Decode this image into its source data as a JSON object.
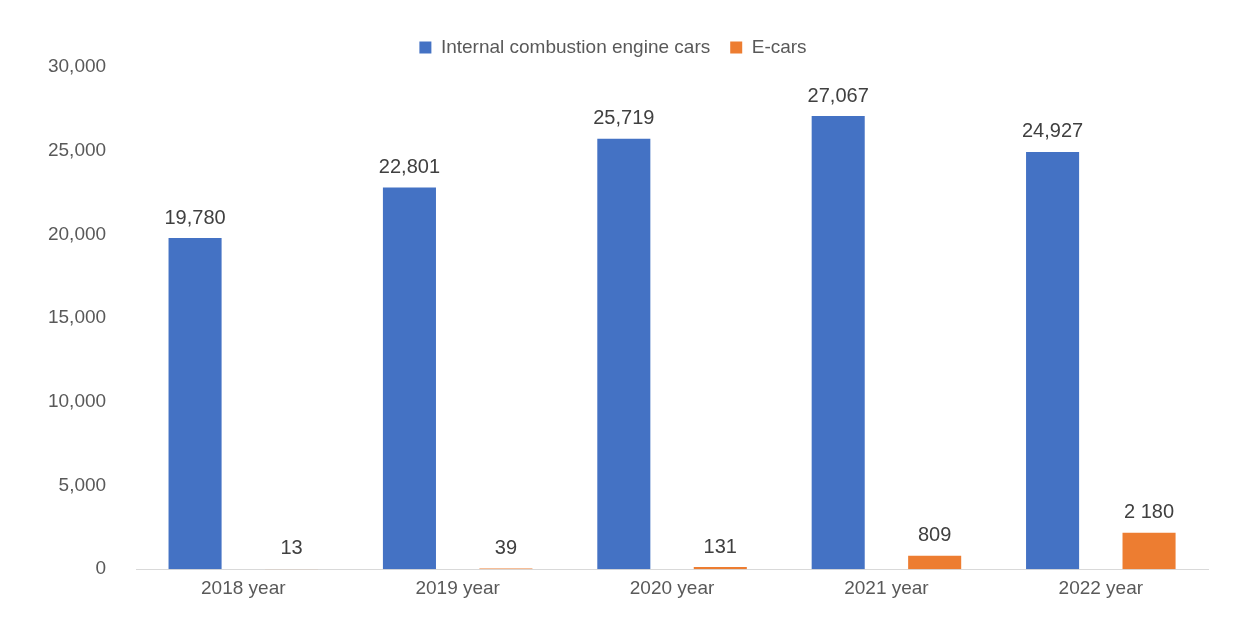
{
  "chart_data": {
    "type": "bar",
    "categories": [
      "2018 year",
      "2019 year",
      "2020 year",
      "2021 year",
      "2022 year"
    ],
    "series": [
      {
        "name": "Internal combustion engine cars",
        "color": "#4472c4",
        "values": [
          19780,
          22801,
          25719,
          27067,
          24927
        ],
        "value_labels": [
          "19,780",
          "22,801",
          "25,719",
          "27,067",
          "24,927"
        ]
      },
      {
        "name": "E-cars",
        "color": "#ed7d31",
        "values": [
          13,
          39,
          131,
          809,
          2180
        ],
        "value_labels": [
          "13",
          "39",
          "131",
          "809",
          "2 180"
        ]
      }
    ],
    "ylim": [
      0,
      30000
    ],
    "yticks": [
      {
        "value": 0,
        "label": "0"
      },
      {
        "value": 5000,
        "label": "5,000"
      },
      {
        "value": 10000,
        "label": "10,000"
      },
      {
        "value": 15000,
        "label": "15,000"
      },
      {
        "value": 20000,
        "label": "20,000"
      },
      {
        "value": 25000,
        "label": "25,000"
      },
      {
        "value": 30000,
        "label": "30,000"
      }
    ],
    "grid": false,
    "legend": "top"
  }
}
